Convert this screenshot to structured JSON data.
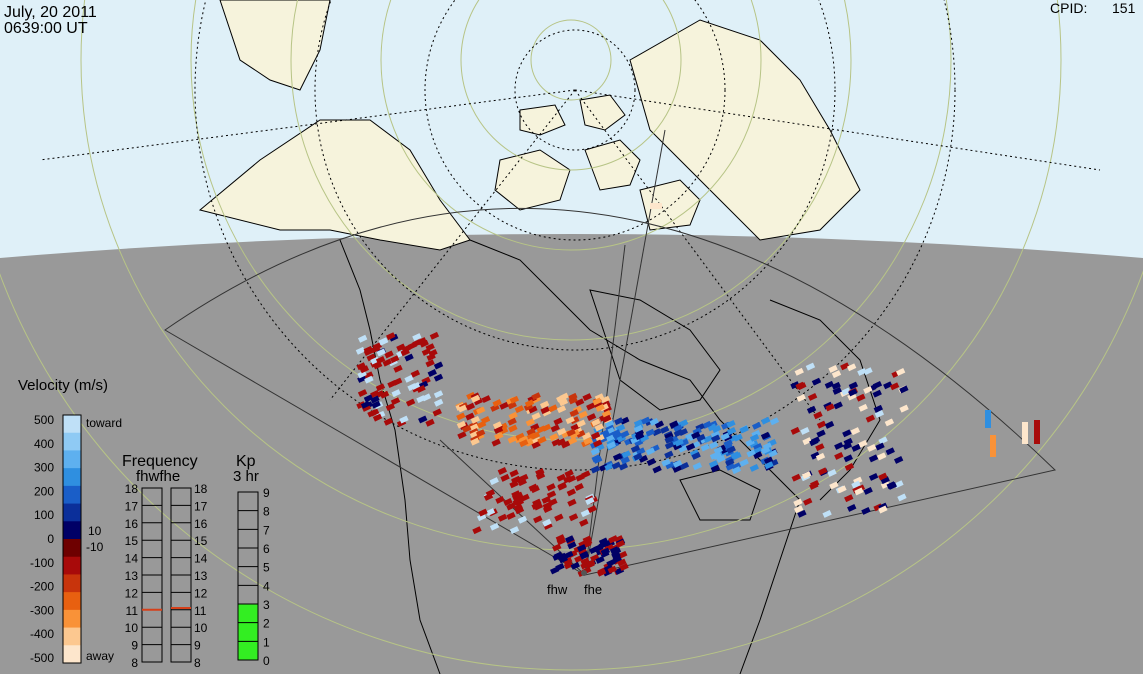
{
  "header": {
    "date": "July, 20 2011",
    "time": "0639:00 UT",
    "cpid_label": "CPID:",
    "cpid_value": "151"
  },
  "radars": [
    {
      "code": "fhw"
    },
    {
      "code": "fhe"
    }
  ],
  "velocity_scale": {
    "title": "Velocity (m/s)",
    "ticks": [
      "500",
      "400",
      "300",
      "200",
      "100",
      "0",
      "-100",
      "-200",
      "-300",
      "-400",
      "-500"
    ],
    "toward_label": "toward",
    "away_label": "away",
    "pos_threshold": "10",
    "neg_threshold": "-10",
    "colors": [
      "#bfe0f7",
      "#8fcaf4",
      "#5eb0ef",
      "#2f8fe0",
      "#1a5ec8",
      "#0b2f9a",
      "#000066",
      "#6e0000",
      "#a80a0a",
      "#c8340c",
      "#e86010",
      "#f99238",
      "#fcc890",
      "#fde6cc"
    ]
  },
  "frequency_panel": {
    "title": "Frequency",
    "columns_label": "fhwfhe",
    "ticks": [
      "18",
      "17",
      "16",
      "15",
      "14",
      "13",
      "12",
      "11",
      "10",
      "9",
      "8"
    ],
    "fhw_value_mhz": 11,
    "fhe_value_mhz": 11.1,
    "marker_color": "#d6401a"
  },
  "kp_panel": {
    "title": "Kp",
    "subtitle": "3 hr",
    "ticks": [
      "9",
      "8",
      "7",
      "6",
      "5",
      "4",
      "3",
      "2",
      "1",
      "0"
    ],
    "value": 3,
    "fill_color": "#33ee22"
  },
  "colors": {
    "ocean_day": "#dff0f8",
    "night": "#999999",
    "land": "#f6f3dc",
    "grid": "#b7c486"
  }
}
